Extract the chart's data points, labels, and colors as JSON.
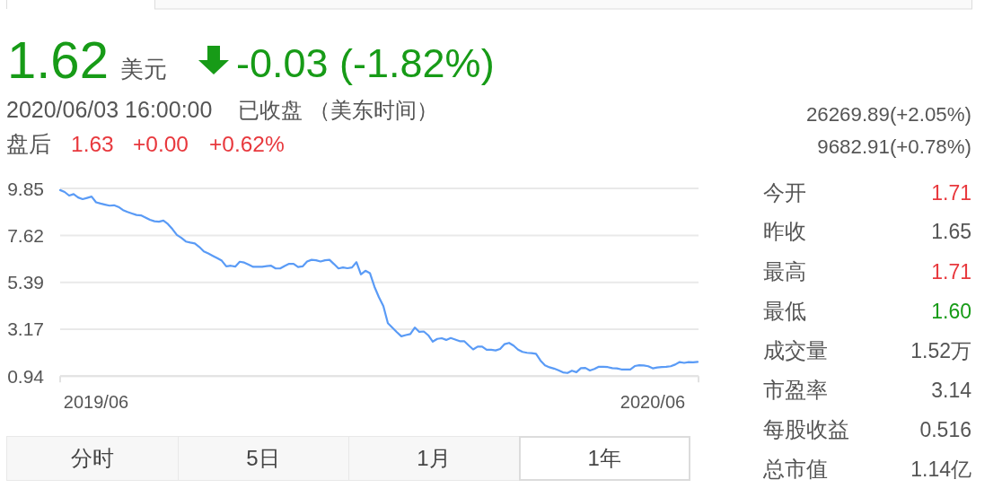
{
  "chart_data": {
    "type": "line",
    "categories": [
      null,
      null,
      null,
      null,
      null,
      null,
      null,
      null,
      "2019/06",
      null,
      null,
      null,
      null,
      null,
      null,
      null,
      null,
      null,
      null,
      null,
      null,
      null,
      null,
      null,
      null,
      null,
      null,
      null,
      null,
      null,
      null,
      null,
      null,
      null,
      null,
      null,
      null,
      null,
      null,
      null,
      null,
      null,
      null,
      null,
      null,
      null,
      null,
      null,
      null,
      null,
      null,
      null,
      null,
      null,
      null,
      null,
      null,
      null,
      null,
      null,
      null,
      null,
      null,
      null,
      null,
      null,
      null,
      null,
      null,
      null,
      null,
      null,
      null,
      null,
      null,
      null,
      null,
      null,
      null,
      null,
      null,
      null,
      null,
      null,
      null,
      null,
      null,
      null,
      null,
      null,
      null,
      null,
      null,
      null,
      null,
      null,
      null,
      null,
      null,
      null,
      null,
      null,
      null,
      null,
      null,
      null,
      null,
      null,
      null,
      null,
      null,
      null,
      null,
      null,
      null,
      null,
      null,
      null,
      null,
      null,
      null,
      null,
      null,
      null,
      null,
      null,
      null,
      null,
      null,
      null,
      null,
      null,
      "2020/06",
      null,
      null,
      null,
      null,
      null,
      null,
      null,
      null,
      null,
      null
    ],
    "values": [
      9.77,
      9.68,
      9.51,
      9.58,
      9.42,
      9.34,
      9.4,
      9.46,
      9.19,
      9.13,
      9.08,
      9.03,
      9.05,
      8.97,
      8.82,
      8.73,
      8.66,
      8.59,
      8.57,
      8.47,
      8.36,
      8.29,
      8.27,
      8.32,
      8.16,
      7.92,
      7.64,
      7.5,
      7.33,
      7.28,
      7.24,
      7.07,
      6.86,
      6.76,
      6.65,
      6.54,
      6.42,
      6.15,
      6.18,
      6.14,
      6.37,
      6.33,
      6.23,
      6.13,
      6.13,
      6.13,
      6.16,
      6.18,
      6.05,
      6.05,
      6.17,
      6.27,
      6.27,
      6.12,
      6.15,
      6.38,
      6.46,
      6.44,
      6.38,
      6.44,
      6.46,
      6.26,
      6.05,
      6.1,
      6.06,
      6.1,
      6.35,
      5.77,
      5.94,
      5.83,
      5.19,
      4.69,
      4.26,
      3.45,
      3.24,
      3.03,
      2.83,
      2.89,
      2.94,
      3.25,
      3.04,
      3.06,
      2.88,
      2.58,
      2.71,
      2.74,
      2.66,
      2.75,
      2.68,
      2.6,
      2.6,
      2.4,
      2.21,
      2.34,
      2.34,
      2.19,
      2.19,
      2.16,
      2.23,
      2.46,
      2.52,
      2.39,
      2.2,
      2.09,
      2.05,
      2.03,
      2.0,
      1.68,
      1.45,
      1.36,
      1.3,
      1.22,
      1.12,
      1.09,
      1.2,
      1.13,
      1.32,
      1.33,
      1.21,
      1.28,
      1.39,
      1.38,
      1.37,
      1.32,
      1.31,
      1.26,
      1.26,
      1.26,
      1.42,
      1.46,
      1.45,
      1.41,
      1.31,
      1.35,
      1.37,
      1.38,
      1.41,
      1.49,
      1.61,
      1.57,
      1.61,
      1.6,
      1.62
    ],
    "color": "#5a9bf6",
    "ylim": [
      0.94,
      9.85
    ],
    "yticks": [
      0.94,
      3.17,
      5.39,
      7.62,
      9.85
    ],
    "grid": "y",
    "annotations": [
      "1.62",
      "美元",
      "-0.03 (-1.82%)",
      "2020/06/03 16:00:00",
      "已收盘",
      "（美东时间）",
      "盘后",
      "1.63",
      "+0.00",
      "+0.62%",
      "26269.89(+2.05%)",
      "9682.91(+0.78%)",
      "今开",
      "1.71",
      "昨收",
      "1.65",
      "最高",
      "1.71",
      "最低",
      "1.60",
      "成交量",
      "1.52万",
      "市盈率",
      "3.14",
      "每股收益",
      "0.516",
      "总市值",
      "1.14亿",
      "分时",
      "5日",
      "1月",
      "1年"
    ]
  }
}
